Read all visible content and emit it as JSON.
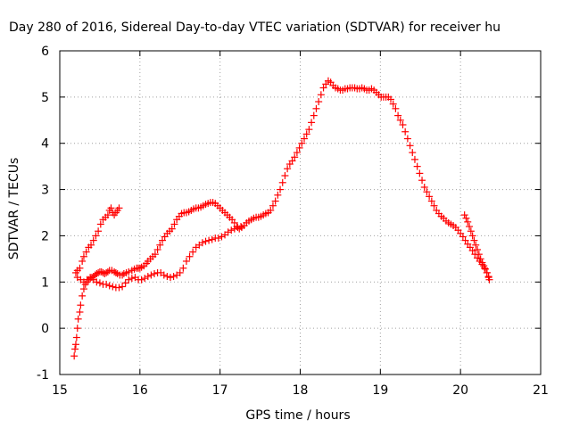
{
  "chart_data": {
    "type": "scatter",
    "title": "Day 280 of 2016, Sidereal Day-to-day VTEC variation (SDTVAR) for receiver hu",
    "xlabel": "GPS time / hours",
    "ylabel": "SDTVAR / TECUs",
    "xlim": [
      15,
      21
    ],
    "ylim": [
      -1,
      6
    ],
    "xticks": [
      "15",
      "16",
      "17",
      "18",
      "19",
      "20",
      "21"
    ],
    "yticks": [
      "-1",
      "0",
      "1",
      "2",
      "3",
      "4",
      "5",
      "6"
    ],
    "grid": true,
    "marker": "+",
    "series": [
      {
        "color": "#ff0000",
        "points": [
          [
            15.18,
            -0.6
          ],
          [
            15.19,
            -0.45
          ],
          [
            15.2,
            -0.35
          ],
          [
            15.21,
            -0.2
          ],
          [
            15.22,
            0.0
          ],
          [
            15.23,
            0.2
          ],
          [
            15.25,
            0.35
          ],
          [
            15.26,
            0.5
          ],
          [
            15.28,
            0.7
          ],
          [
            15.3,
            0.85
          ],
          [
            15.32,
            0.95
          ],
          [
            15.34,
            1.0
          ],
          [
            15.36,
            1.05
          ],
          [
            15.38,
            1.08
          ],
          [
            15.4,
            1.1
          ],
          [
            15.42,
            1.12
          ],
          [
            15.44,
            1.15
          ],
          [
            15.46,
            1.18
          ],
          [
            15.48,
            1.2
          ],
          [
            15.5,
            1.22
          ],
          [
            15.52,
            1.22
          ],
          [
            15.54,
            1.2
          ],
          [
            15.56,
            1.18
          ],
          [
            15.58,
            1.2
          ],
          [
            15.6,
            1.22
          ],
          [
            15.62,
            1.25
          ],
          [
            15.65,
            1.25
          ],
          [
            15.68,
            1.22
          ],
          [
            15.7,
            1.2
          ],
          [
            15.72,
            1.18
          ],
          [
            15.75,
            1.15
          ],
          [
            15.78,
            1.15
          ],
          [
            15.8,
            1.18
          ],
          [
            15.83,
            1.2
          ],
          [
            15.86,
            1.22
          ],
          [
            15.9,
            1.25
          ],
          [
            15.93,
            1.28
          ],
          [
            15.96,
            1.3
          ],
          [
            15.98,
            1.3
          ],
          [
            16.0,
            1.3
          ],
          [
            16.02,
            1.32
          ],
          [
            16.05,
            1.35
          ],
          [
            16.08,
            1.4
          ],
          [
            16.1,
            1.45
          ],
          [
            16.13,
            1.5
          ],
          [
            16.16,
            1.55
          ],
          [
            16.19,
            1.6
          ],
          [
            16.22,
            1.7
          ],
          [
            16.25,
            1.8
          ],
          [
            16.28,
            1.9
          ],
          [
            16.31,
            1.98
          ],
          [
            16.34,
            2.05
          ],
          [
            16.37,
            2.1
          ],
          [
            16.4,
            2.15
          ],
          [
            16.43,
            2.25
          ],
          [
            16.46,
            2.35
          ],
          [
            16.49,
            2.42
          ],
          [
            16.52,
            2.48
          ],
          [
            16.55,
            2.5
          ],
          [
            16.58,
            2.5
          ],
          [
            16.61,
            2.52
          ],
          [
            16.64,
            2.55
          ],
          [
            16.67,
            2.58
          ],
          [
            16.7,
            2.6
          ],
          [
            16.73,
            2.6
          ],
          [
            16.76,
            2.62
          ],
          [
            16.79,
            2.65
          ],
          [
            16.82,
            2.68
          ],
          [
            16.85,
            2.7
          ],
          [
            16.88,
            2.72
          ],
          [
            16.91,
            2.72
          ],
          [
            16.94,
            2.7
          ],
          [
            16.97,
            2.65
          ],
          [
            17.0,
            2.6
          ],
          [
            17.03,
            2.55
          ],
          [
            17.06,
            2.5
          ],
          [
            17.09,
            2.45
          ],
          [
            17.12,
            2.4
          ],
          [
            17.15,
            2.35
          ],
          [
            17.18,
            2.28
          ],
          [
            17.21,
            2.2
          ],
          [
            17.24,
            2.15
          ],
          [
            17.27,
            2.18
          ],
          [
            17.3,
            2.22
          ],
          [
            17.33,
            2.28
          ],
          [
            17.36,
            2.32
          ],
          [
            17.39,
            2.35
          ],
          [
            17.42,
            2.38
          ],
          [
            17.45,
            2.4
          ],
          [
            17.48,
            2.4
          ],
          [
            17.51,
            2.42
          ],
          [
            17.54,
            2.45
          ],
          [
            17.57,
            2.48
          ],
          [
            17.6,
            2.5
          ],
          [
            17.63,
            2.55
          ],
          [
            17.66,
            2.65
          ],
          [
            17.69,
            2.75
          ],
          [
            17.72,
            2.88
          ],
          [
            17.75,
            3.0
          ],
          [
            17.78,
            3.15
          ],
          [
            17.81,
            3.3
          ],
          [
            17.84,
            3.45
          ],
          [
            17.87,
            3.55
          ],
          [
            17.9,
            3.62
          ],
          [
            17.93,
            3.7
          ],
          [
            17.96,
            3.8
          ],
          [
            17.99,
            3.9
          ],
          [
            18.02,
            4.0
          ],
          [
            18.05,
            4.1
          ],
          [
            18.08,
            4.2
          ],
          [
            18.11,
            4.3
          ],
          [
            18.14,
            4.45
          ],
          [
            18.17,
            4.6
          ],
          [
            18.2,
            4.75
          ],
          [
            18.23,
            4.9
          ],
          [
            18.26,
            5.05
          ],
          [
            18.29,
            5.2
          ],
          [
            18.32,
            5.28
          ],
          [
            18.35,
            5.35
          ],
          [
            18.38,
            5.32
          ],
          [
            18.41,
            5.25
          ],
          [
            18.44,
            5.2
          ],
          [
            18.47,
            5.18
          ],
          [
            18.5,
            5.15
          ],
          [
            18.53,
            5.15
          ],
          [
            18.56,
            5.18
          ],
          [
            18.59,
            5.18
          ],
          [
            18.62,
            5.2
          ],
          [
            18.65,
            5.2
          ],
          [
            18.68,
            5.2
          ],
          [
            18.71,
            5.18
          ],
          [
            18.74,
            5.18
          ],
          [
            18.77,
            5.2
          ],
          [
            18.8,
            5.18
          ],
          [
            18.83,
            5.15
          ],
          [
            18.86,
            5.15
          ],
          [
            18.89,
            5.18
          ],
          [
            18.92,
            5.15
          ],
          [
            18.95,
            5.1
          ],
          [
            18.98,
            5.05
          ],
          [
            19.01,
            5.0
          ],
          [
            19.04,
            5.0
          ],
          [
            19.07,
            5.0
          ],
          [
            19.1,
            5.0
          ],
          [
            19.13,
            4.95
          ],
          [
            19.16,
            4.85
          ],
          [
            19.19,
            4.75
          ],
          [
            19.22,
            4.6
          ],
          [
            19.25,
            4.5
          ],
          [
            19.28,
            4.4
          ],
          [
            19.31,
            4.25
          ],
          [
            19.34,
            4.1
          ],
          [
            19.37,
            3.95
          ],
          [
            19.4,
            3.8
          ],
          [
            19.43,
            3.65
          ],
          [
            19.46,
            3.5
          ],
          [
            19.49,
            3.35
          ],
          [
            19.52,
            3.2
          ],
          [
            19.55,
            3.05
          ],
          [
            19.58,
            2.95
          ],
          [
            19.61,
            2.85
          ],
          [
            19.64,
            2.75
          ],
          [
            19.67,
            2.65
          ],
          [
            19.7,
            2.55
          ],
          [
            19.73,
            2.48
          ],
          [
            19.76,
            2.42
          ],
          [
            19.79,
            2.38
          ],
          [
            19.82,
            2.32
          ],
          [
            19.85,
            2.28
          ],
          [
            19.88,
            2.25
          ],
          [
            19.91,
            2.22
          ],
          [
            19.94,
            2.18
          ],
          [
            19.97,
            2.12
          ],
          [
            20.0,
            2.05
          ],
          [
            20.03,
            1.98
          ],
          [
            20.06,
            1.9
          ],
          [
            20.09,
            1.82
          ],
          [
            20.12,
            1.75
          ],
          [
            20.15,
            1.68
          ],
          [
            20.18,
            1.6
          ],
          [
            20.21,
            1.52
          ],
          [
            20.24,
            1.45
          ],
          [
            20.27,
            1.38
          ],
          [
            20.3,
            1.3
          ],
          [
            20.33,
            1.2
          ],
          [
            20.35,
            1.1
          ],
          [
            20.36,
            1.05
          ]
        ]
      },
      {
        "color": "#ff0000",
        "points": [
          [
            15.2,
            1.2
          ],
          [
            15.22,
            1.25
          ],
          [
            15.25,
            1.3
          ],
          [
            15.28,
            1.45
          ],
          [
            15.3,
            1.55
          ],
          [
            15.33,
            1.65
          ],
          [
            15.36,
            1.75
          ],
          [
            15.39,
            1.8
          ],
          [
            15.42,
            1.9
          ],
          [
            15.45,
            2.0
          ],
          [
            15.48,
            2.1
          ],
          [
            15.51,
            2.25
          ],
          [
            15.54,
            2.35
          ],
          [
            15.57,
            2.4
          ],
          [
            15.6,
            2.45
          ],
          [
            15.62,
            2.55
          ],
          [
            15.64,
            2.6
          ],
          [
            15.66,
            2.5
          ],
          [
            15.68,
            2.45
          ],
          [
            15.7,
            2.5
          ],
          [
            15.72,
            2.55
          ],
          [
            15.74,
            2.6
          ],
          [
            15.22,
            1.1
          ],
          [
            15.26,
            1.05
          ],
          [
            15.3,
            1.0
          ],
          [
            15.34,
            1.05
          ],
          [
            15.38,
            1.1
          ],
          [
            15.42,
            1.05
          ],
          [
            15.46,
            1.0
          ],
          [
            15.5,
            0.98
          ],
          [
            15.54,
            0.95
          ],
          [
            15.58,
            0.95
          ],
          [
            15.62,
            0.92
          ],
          [
            15.66,
            0.9
          ],
          [
            15.7,
            0.88
          ],
          [
            15.74,
            0.88
          ],
          [
            15.78,
            0.9
          ],
          [
            15.82,
            0.98
          ],
          [
            15.86,
            1.05
          ],
          [
            15.9,
            1.08
          ],
          [
            15.94,
            1.1
          ],
          [
            15.98,
            1.05
          ],
          [
            16.02,
            1.05
          ],
          [
            16.06,
            1.08
          ],
          [
            16.1,
            1.12
          ],
          [
            16.14,
            1.15
          ],
          [
            16.18,
            1.18
          ],
          [
            16.22,
            1.2
          ],
          [
            16.26,
            1.2
          ],
          [
            16.3,
            1.15
          ],
          [
            16.34,
            1.12
          ],
          [
            16.38,
            1.1
          ],
          [
            16.42,
            1.12
          ],
          [
            16.46,
            1.15
          ],
          [
            16.5,
            1.2
          ],
          [
            16.54,
            1.3
          ],
          [
            16.58,
            1.45
          ],
          [
            16.62,
            1.55
          ],
          [
            16.66,
            1.65
          ],
          [
            16.7,
            1.75
          ],
          [
            16.74,
            1.8
          ],
          [
            16.78,
            1.85
          ],
          [
            16.82,
            1.88
          ],
          [
            16.86,
            1.9
          ],
          [
            16.9,
            1.92
          ],
          [
            16.94,
            1.95
          ],
          [
            16.98,
            1.95
          ],
          [
            17.02,
            1.98
          ],
          [
            17.06,
            2.02
          ],
          [
            17.1,
            2.08
          ],
          [
            17.14,
            2.12
          ],
          [
            17.18,
            2.15
          ],
          [
            17.22,
            2.18
          ],
          [
            17.26,
            2.2
          ]
        ]
      },
      {
        "color": "#ff0000",
        "points": [
          [
            20.05,
            2.45
          ],
          [
            20.07,
            2.38
          ],
          [
            20.09,
            2.3
          ],
          [
            20.11,
            2.2
          ],
          [
            20.13,
            2.1
          ],
          [
            20.15,
            2.0
          ],
          [
            20.17,
            1.9
          ],
          [
            20.19,
            1.8
          ],
          [
            20.21,
            1.7
          ],
          [
            20.23,
            1.6
          ],
          [
            20.25,
            1.5
          ],
          [
            20.27,
            1.42
          ],
          [
            20.29,
            1.35
          ],
          [
            20.31,
            1.28
          ],
          [
            20.33,
            1.2
          ],
          [
            20.35,
            1.12
          ]
        ]
      }
    ]
  }
}
